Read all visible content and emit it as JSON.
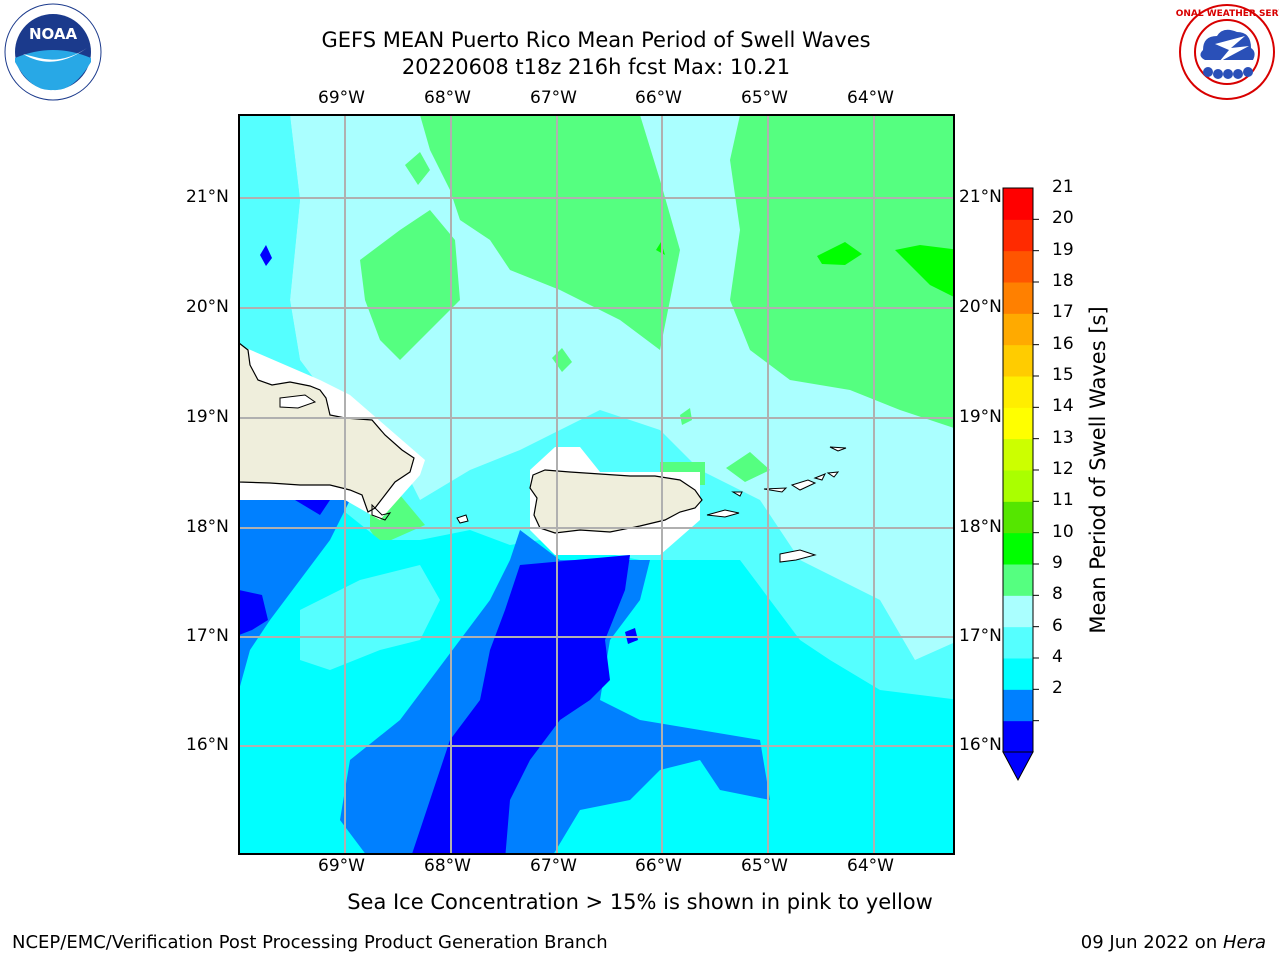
{
  "header": {
    "title_line1": "GEFS MEAN Puerto Rico Mean Period of Swell Waves",
    "title_line2": "20220608 t18z 216h fcst   Max: 10.21"
  },
  "logos": {
    "noaa_text": "NOAA",
    "noaa_ring": "NATIONAL OCEANIC AND ATMOSPHERIC ADMINISTRATION · U.S. DEPARTMENT OF COMMERCE",
    "nws_ring": "NATIONAL WEATHER SERVICE"
  },
  "axes": {
    "lon_labels": [
      "69°W",
      "68°W",
      "67°W",
      "66°W",
      "65°W",
      "64°W"
    ],
    "lat_labels": [
      "21°N",
      "20°N",
      "19°N",
      "18°N",
      "17°N",
      "16°N"
    ]
  },
  "colorbar": {
    "label": "Mean Period of Swell Waves [s]",
    "ticks": [
      "21",
      "20",
      "19",
      "18",
      "17",
      "16",
      "15",
      "14",
      "13",
      "12",
      "11",
      "10",
      "9",
      "8",
      "6",
      "4",
      "2"
    ],
    "colors_bottom_to_top": [
      "#0000ff",
      "#0080ff",
      "#00ffff",
      "#55ffff",
      "#aaffff",
      "#55ff80",
      "#00ff00",
      "#55e600",
      "#aaff00",
      "#ccff00",
      "#ffff00",
      "#ffee00",
      "#ffcc00",
      "#ffaa00",
      "#ff8000",
      "#ff5500",
      "#ff2a00",
      "#ff0000"
    ],
    "extend_color": "#0000ff"
  },
  "map_colors": {
    "land": "#efeedc",
    "grid": "#b0b0b0",
    "level_2": "#0000ff",
    "level_4": "#0080ff",
    "level_6": "#00ffff",
    "level_8": "#55ffff",
    "level_9": "#aaffff",
    "level_10": "#55ff80",
    "level_11": "#00ff00"
  },
  "caption": "Sea Ice Concentration > 15% is shown in pink to yellow",
  "footer": {
    "left": "NCEP/EMC/Verification Post Processing Product Generation Branch",
    "date": "09 Jun 2022 on ",
    "machine": "Hera"
  }
}
